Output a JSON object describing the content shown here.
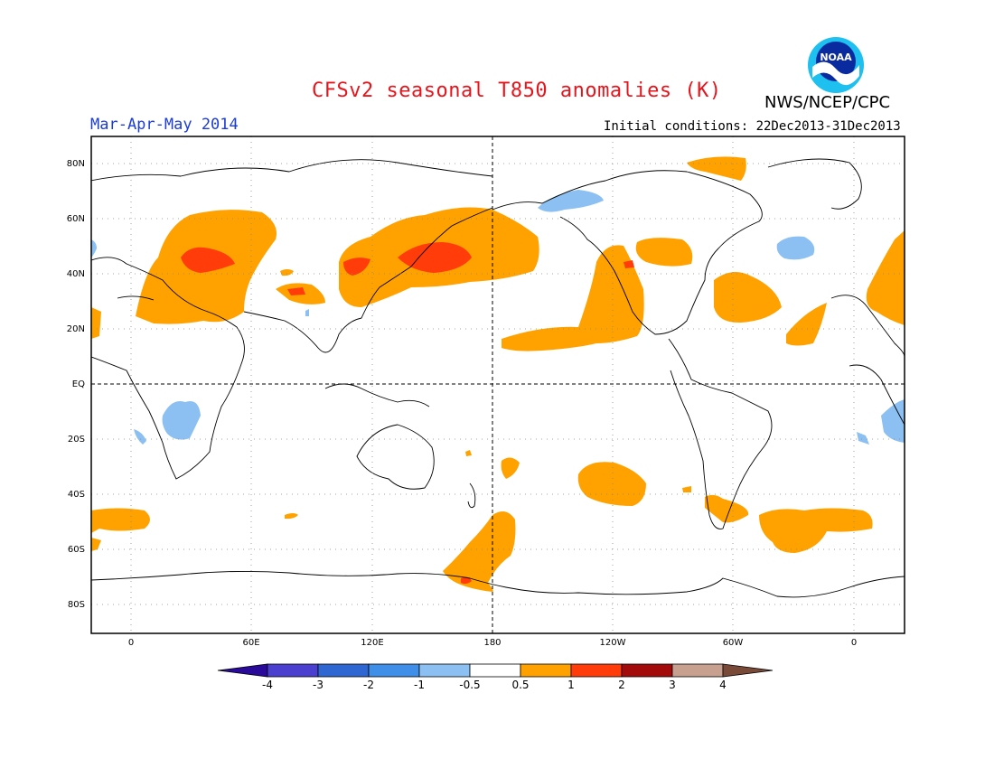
{
  "title": "CFSv2 seasonal T850 anomalies (K)",
  "agency": "NWS/NCEP/CPC",
  "logo_text": "NOAA",
  "season": "Mar-Apr-May 2014",
  "initial_conditions": "Initial conditions: 22Dec2013-31Dec2013",
  "lat_labels": [
    "80N",
    "60N",
    "40N",
    "20N",
    "EQ",
    "20S",
    "40S",
    "60S",
    "80S"
  ],
  "lon_labels": [
    "0",
    "60E",
    "120E",
    "180",
    "120W",
    "60W",
    "0"
  ],
  "colorbar": {
    "labels": [
      "-4",
      "-3",
      "-2",
      "-1",
      "-0.5",
      "0.5",
      "1",
      "2",
      "3",
      "4"
    ],
    "colors": [
      "#2a0a9a",
      "#4b3fcf",
      "#2e66d2",
      "#3f8ee8",
      "#8cc0f2",
      "#ffffff",
      "#ffa200",
      "#ff3c0a",
      "#a30a0a",
      "#c8a090",
      "#7a4a38"
    ]
  },
  "colors": {
    "warm": "#ffa200",
    "hot": "#ff3c0a",
    "cool": "#8cc0f2",
    "title": "#e8141c",
    "season": "#1c3cd8"
  }
}
